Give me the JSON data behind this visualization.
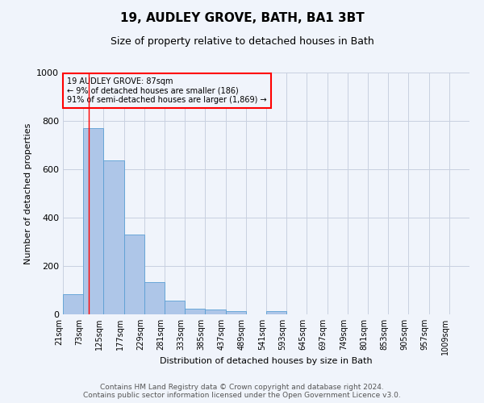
{
  "title": "19, AUDLEY GROVE, BATH, BA1 3BT",
  "subtitle": "Size of property relative to detached houses in Bath",
  "xlabel": "Distribution of detached houses by size in Bath",
  "ylabel": "Number of detached properties",
  "bar_color": "#aec6e8",
  "bar_edge_color": "#5a9fd4",
  "grid_color": "#c8d0e0",
  "annotation_text": "19 AUDLEY GROVE: 87sqm\n← 9% of detached houses are smaller (186)\n91% of semi-detached houses are larger (1,869) →",
  "annotation_box_color": "red",
  "marker_line_x": 87,
  "marker_line_color": "red",
  "footer": "Contains HM Land Registry data © Crown copyright and database right 2024.\nContains public sector information licensed under the Open Government Licence v3.0.",
  "bin_edges": [
    21,
    73,
    125,
    177,
    229,
    281,
    333,
    385,
    437,
    489,
    541,
    593,
    645,
    697,
    749,
    801,
    853,
    905,
    957,
    1009,
    1061
  ],
  "bar_heights": [
    83,
    770,
    638,
    330,
    133,
    58,
    23,
    20,
    13,
    0,
    12,
    0,
    0,
    0,
    0,
    0,
    0,
    0,
    0,
    0
  ],
  "ylim": [
    0,
    1000
  ],
  "xlim": [
    21,
    1061
  ],
  "background_color": "#f0f4fb",
  "title_fontsize": 11,
  "subtitle_fontsize": 9,
  "tick_fontsize": 7,
  "ylabel_fontsize": 8,
  "xlabel_fontsize": 8
}
